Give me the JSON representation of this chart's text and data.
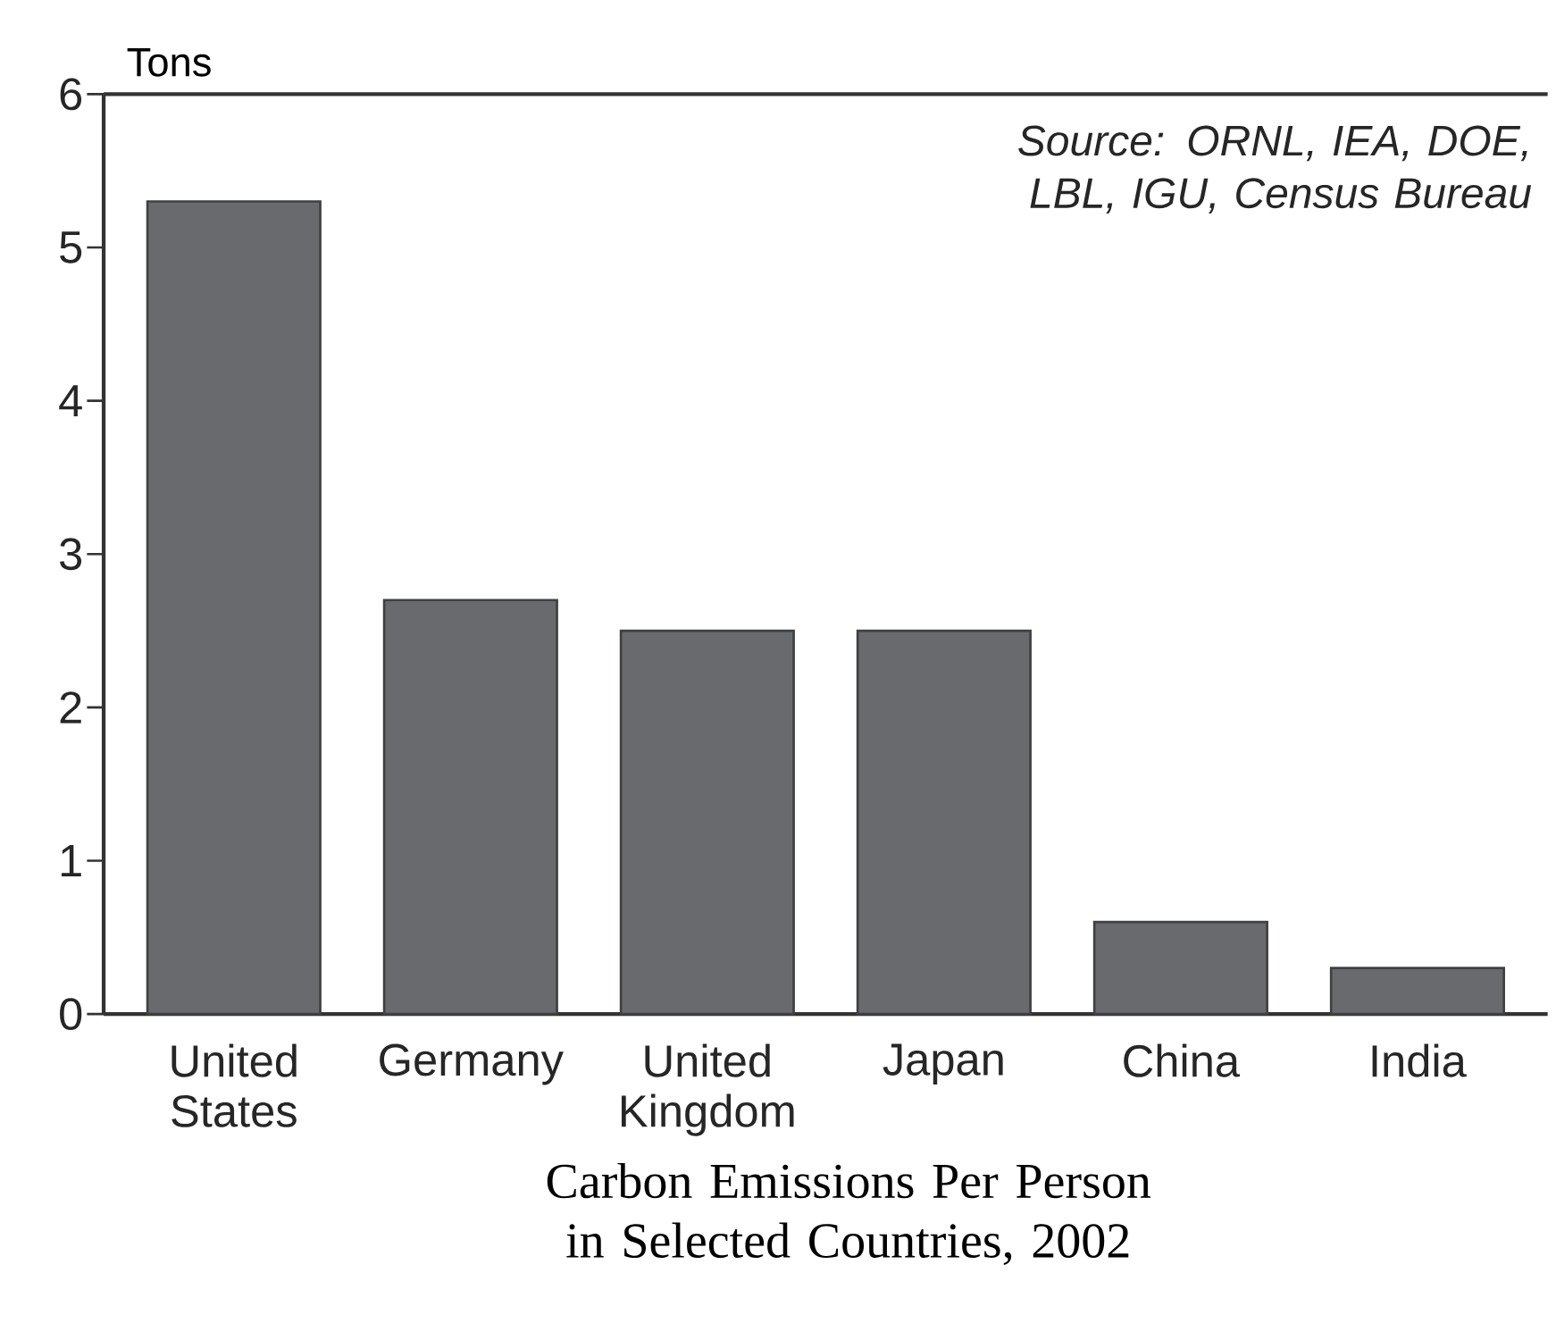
{
  "chart_data": {
    "type": "bar",
    "title": "Carbon Emissions Per Person in Selected Countries, 2002",
    "ylabel": "Tons",
    "annotations": [
      "Source: ORNL, IEA, DOE, LBL, IGU, Census Bureau"
    ],
    "categories": [
      "United States",
      "Germany",
      "United Kingdom",
      "Japan",
      "China",
      "India"
    ],
    "values": [
      5.3,
      2.7,
      2.5,
      2.5,
      0.6,
      0.3
    ],
    "color": "#696a6e",
    "ylim": [
      0,
      6
    ],
    "yticks": [
      0,
      1,
      2,
      3,
      4,
      5,
      6
    ],
    "grid": false
  }
}
